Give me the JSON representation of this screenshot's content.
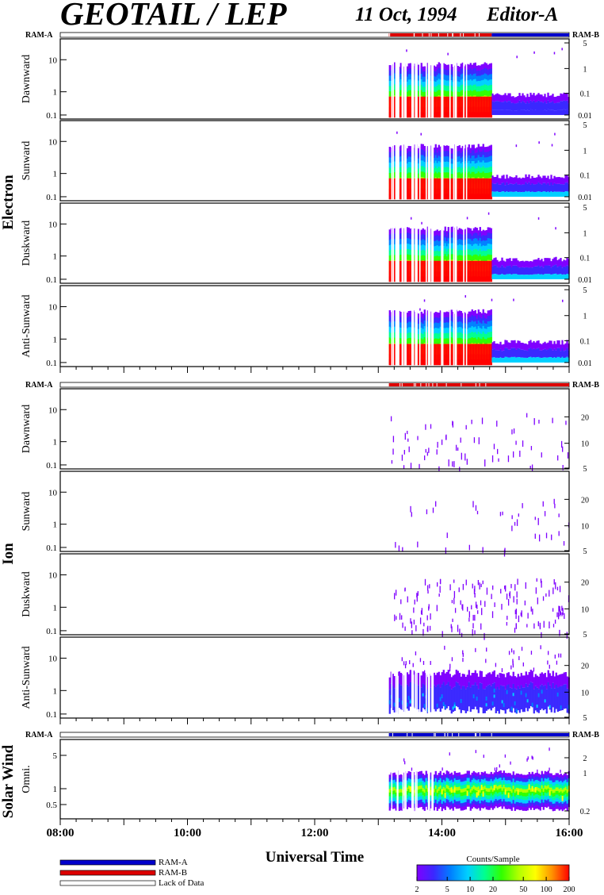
{
  "header": {
    "title": "GEOTAIL / LEP",
    "date": "11 Oct, 1994",
    "editor": "Editor-A"
  },
  "ram_labels": {
    "left": "RAM-A",
    "right": "RAM-B"
  },
  "groups": [
    {
      "id": "electron",
      "label": "Electron",
      "panels": [
        "Dawnward",
        "Sunward",
        "Duskward",
        "Anti-Sunward"
      ]
    },
    {
      "id": "ion",
      "label": "Ion",
      "panels": [
        "Dawnward",
        "Sunward",
        "Duskward",
        "Anti-Sunward"
      ]
    },
    {
      "id": "solar-wind",
      "label": "Solar Wind",
      "panels": [
        "Omni."
      ]
    }
  ],
  "colors": {
    "ram_a": "#0000cc",
    "ram_b": "#dd0000",
    "colorscale": [
      "#7f00ff",
      "#3a28ff",
      "#0080ff",
      "#00d0ff",
      "#00ff90",
      "#30ff00",
      "#b0ff00",
      "#ffff00",
      "#ff9000",
      "#ff0000"
    ]
  },
  "chart_data": {
    "type": "heatmap",
    "x_axis": {
      "label": "Universal Time",
      "ticks": [
        "08:00",
        "10:00",
        "12:00",
        "14:00",
        "16:00"
      ],
      "range": [
        "08:00",
        "16:00"
      ]
    },
    "data_start": "13:10",
    "mode_change": "14:47",
    "electron_panels": [
      {
        "name": "Dawnward",
        "left_ticks": [
          "10",
          "1",
          "0.1"
        ],
        "right_ticks": [
          "5",
          "1",
          "0.1",
          "0.01"
        ]
      },
      {
        "name": "Sunward",
        "left_ticks": [
          "10",
          "1",
          "0.1"
        ],
        "right_ticks": [
          "5",
          "1",
          "0.1",
          "0.01"
        ]
      },
      {
        "name": "Duskward",
        "left_ticks": [
          "10",
          "1",
          "0.1"
        ],
        "right_ticks": [
          "5",
          "1",
          "0.1",
          "0.01"
        ]
      },
      {
        "name": "Anti-Sunward",
        "left_ticks": [
          "10",
          "1",
          "0.1"
        ],
        "right_ticks": [
          "5",
          "1",
          "0.1",
          "0.01"
        ]
      }
    ],
    "ion_panels": [
      {
        "name": "Dawnward",
        "left_ticks": [
          "10",
          "1",
          "0.1"
        ],
        "right_ticks": [
          "20",
          "10",
          "5"
        ]
      },
      {
        "name": "Sunward",
        "left_ticks": [
          "10",
          "1",
          "0.1"
        ],
        "right_ticks": [
          "20",
          "10",
          "5"
        ]
      },
      {
        "name": "Duskward",
        "left_ticks": [
          "10",
          "1",
          "0.1"
        ],
        "right_ticks": [
          "20",
          "10",
          "5"
        ]
      },
      {
        "name": "Anti-Sunward",
        "left_ticks": [
          "10",
          "1",
          "0.1"
        ],
        "right_ticks": [
          "20",
          "10",
          "5"
        ]
      }
    ],
    "solar_wind_panel": {
      "name": "Omni.",
      "left_ticks": [
        "5",
        "1",
        "0.5"
      ],
      "right_ticks": [
        "2",
        "1",
        "0.2"
      ]
    },
    "legend": {
      "entries": [
        "RAM-A",
        "RAM-B",
        "Lack of Data"
      ]
    },
    "colorbar": {
      "title": "Counts/Sample",
      "ticks": [
        "2",
        "5",
        "10",
        "20",
        "50",
        "100",
        "200"
      ],
      "range": [
        2,
        200
      ],
      "scale": "log"
    }
  }
}
